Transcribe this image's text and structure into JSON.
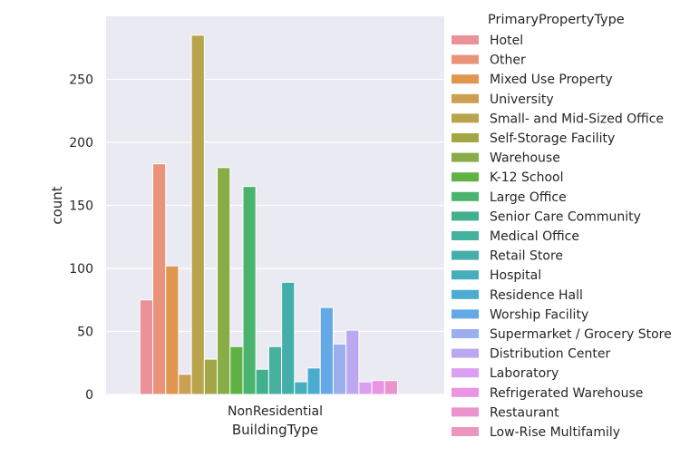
{
  "chart_data": {
    "type": "bar",
    "xlabel": "BuildingType",
    "ylabel": "count",
    "categories": [
      "NonResidential"
    ],
    "ylim": [
      0,
      300
    ],
    "yticks": [
      0,
      50,
      100,
      150,
      200,
      250
    ],
    "grid": true,
    "legend": {
      "title": "PrimaryPropertyType",
      "placement": "right"
    },
    "series": [
      {
        "name": "Hotel",
        "values": [
          75
        ],
        "color": "#ea9199"
      },
      {
        "name": "Other",
        "values": [
          183
        ],
        "color": "#e9947a"
      },
      {
        "name": "Mixed Use Property",
        "values": [
          102
        ],
        "color": "#e0964e"
      },
      {
        "name": "University",
        "values": [
          16
        ],
        "color": "#cc9f52"
      },
      {
        "name": "Small- and Mid-Sized Office",
        "values": [
          285
        ],
        "color": "#b9a34d"
      },
      {
        "name": "Self-Storage Facility",
        "values": [
          28
        ],
        "color": "#a3a645"
      },
      {
        "name": "Warehouse",
        "values": [
          180
        ],
        "color": "#88ad47"
      },
      {
        "name": "K-12 School",
        "values": [
          38
        ],
        "color": "#5fb344"
      },
      {
        "name": "Large Office",
        "values": [
          165
        ],
        "color": "#4ab46e"
      },
      {
        "name": "Senior Care Community",
        "values": [
          20
        ],
        "color": "#43b08d"
      },
      {
        "name": "Medical Office",
        "values": [
          38
        ],
        "color": "#45b19e"
      },
      {
        "name": "Retail Store",
        "values": [
          89
        ],
        "color": "#44aeab"
      },
      {
        "name": "Hospital",
        "values": [
          10
        ],
        "color": "#46adbb"
      },
      {
        "name": "Residence Hall",
        "values": [
          21
        ],
        "color": "#4bacd1"
      },
      {
        "name": "Worship Facility",
        "values": [
          69
        ],
        "color": "#62a9e5"
      },
      {
        "name": "Supermarket / Grocery Store",
        "values": [
          40
        ],
        "color": "#9bafee"
      },
      {
        "name": "Distribution Center",
        "values": [
          51
        ],
        "color": "#bca8ef"
      },
      {
        "name": "Laboratory",
        "values": [
          10
        ],
        "color": "#d99ff0"
      },
      {
        "name": "Refrigerated Warehouse",
        "values": [
          11
        ],
        "color": "#ea94e3"
      },
      {
        "name": "Restaurant",
        "values": [
          11
        ],
        "color": "#ea93cd"
      },
      {
        "name": "Low-Rise Multifamily",
        "values": [
          0
        ],
        "color": "#ea96bf"
      }
    ]
  }
}
